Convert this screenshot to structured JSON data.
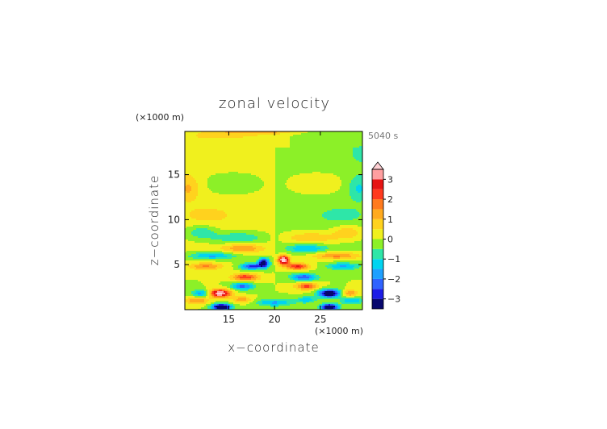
{
  "chart_data": {
    "type": "heatmap",
    "title": "zonal velocity",
    "xlabel": "x−coordinate",
    "ylabel": "z−coordinate",
    "x_unit": "(×1000 m)",
    "y_unit": "(×1000 m)",
    "time_label": "5040 s",
    "xlim": [
      10.2,
      29.6
    ],
    "ylim": [
      0,
      19.8
    ],
    "x_ticks": [
      15,
      20,
      25
    ],
    "y_ticks": [
      5,
      10,
      15
    ],
    "grid": false,
    "colorbar": {
      "placement": "right",
      "levels": [
        -3.5,
        -3,
        -2.5,
        -2,
        -1.5,
        -1,
        -0.5,
        0,
        0.5,
        1,
        1.5,
        2,
        2.5,
        3,
        3.5
      ],
      "colors": [
        "#07076e",
        "#1c1ce6",
        "#2f63ff",
        "#1ea0ff",
        "#00d4f0",
        "#2ee6a8",
        "#8cf028",
        "#f0f01e",
        "#ffd21e",
        "#ffaa1e",
        "#ff7a1e",
        "#ff3a1e",
        "#e61414",
        "#ff9fa0",
        "#ffd0d4"
      ],
      "tick_labels": [
        "3",
        "2",
        "1",
        "0",
        "−1",
        "−2",
        "−3"
      ],
      "tick_values": [
        3,
        2,
        1,
        0,
        -1,
        -2,
        -3
      ],
      "extend": "max"
    }
  }
}
